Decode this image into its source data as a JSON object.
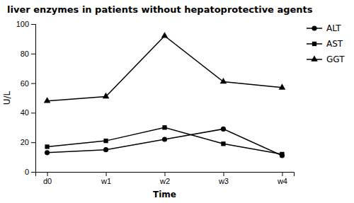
{
  "chart_data": {
    "type": "line",
    "title": "liver enzymes in patients without hepatoprotective agents",
    "xlabel": "Time",
    "ylabel": "U/L",
    "categories": [
      "d0",
      "w1",
      "w2",
      "w3",
      "w4"
    ],
    "series": [
      {
        "name": "ALT",
        "color": "#000000",
        "marker": "circle",
        "values": [
          13,
          15,
          22,
          29,
          11
        ]
      },
      {
        "name": "AST",
        "color": "#000000",
        "marker": "square",
        "values": [
          17,
          21,
          30,
          19,
          12
        ]
      },
      {
        "name": "GGT",
        "color": "#000000",
        "marker": "triangle",
        "values": [
          48,
          51,
          92,
          61,
          57
        ]
      }
    ],
    "ylim": [
      0,
      100
    ],
    "yticks": [
      0,
      20,
      40,
      60,
      80,
      100
    ],
    "legend": "right",
    "grid": false
  }
}
